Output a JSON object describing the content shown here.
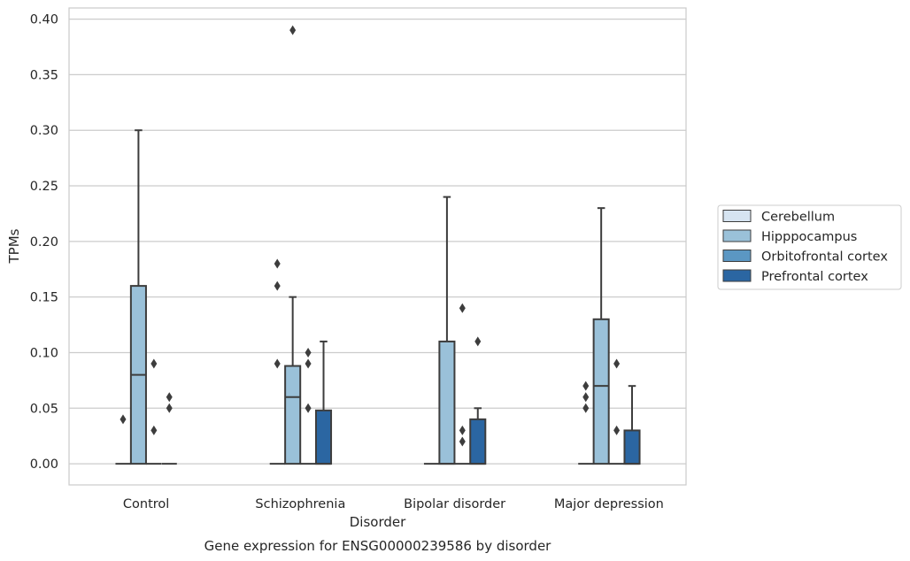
{
  "chart_data": {
    "type": "box",
    "title": "",
    "caption": "Gene expression for ENSG00000239586 by disorder",
    "xlabel": "Disorder",
    "ylabel": "TPMs",
    "ylim": [
      -0.019,
      0.41
    ],
    "yticks": [
      0.0,
      0.05,
      0.1,
      0.15,
      0.2,
      0.25,
      0.3,
      0.35,
      0.4
    ],
    "ytick_labels": [
      "0.00",
      "0.05",
      "0.10",
      "0.15",
      "0.20",
      "0.25",
      "0.30",
      "0.35",
      "0.40"
    ],
    "grid": true,
    "legend_position": "right",
    "categories": [
      "Control",
      "Schizophrenia",
      "Bipolar disorder",
      "Major depression"
    ],
    "series": [
      {
        "name": "Cerebellum",
        "color": "#d6e4f1",
        "boxes": [
          {
            "q1": 0,
            "median": 0,
            "q3": 0,
            "whisker_low": 0,
            "whisker_high": 0,
            "outliers": [
              0.04
            ]
          },
          {
            "q1": 0,
            "median": 0,
            "q3": 0,
            "whisker_low": 0,
            "whisker_high": 0,
            "outliers": [
              0.09,
              0.16,
              0.18
            ]
          },
          {
            "q1": 0,
            "median": 0,
            "q3": 0,
            "whisker_low": 0,
            "whisker_high": 0,
            "outliers": []
          },
          {
            "q1": 0,
            "median": 0,
            "q3": 0,
            "whisker_low": 0,
            "whisker_high": 0,
            "outliers": [
              0.05,
              0.06,
              0.07
            ]
          }
        ]
      },
      {
        "name": "Hipppocampus",
        "color": "#9ac1d9",
        "boxes": [
          {
            "q1": 0,
            "median": 0.08,
            "q3": 0.16,
            "whisker_low": 0,
            "whisker_high": 0.3,
            "outliers": []
          },
          {
            "q1": 0,
            "median": 0.06,
            "q3": 0.088,
            "whisker_low": 0,
            "whisker_high": 0.15,
            "outliers": [
              0.39
            ]
          },
          {
            "q1": 0,
            "median": 0,
            "q3": 0.11,
            "whisker_low": 0,
            "whisker_high": 0.24,
            "outliers": []
          },
          {
            "q1": 0,
            "median": 0.07,
            "q3": 0.13,
            "whisker_low": 0,
            "whisker_high": 0.23,
            "outliers": []
          }
        ]
      },
      {
        "name": "Orbitofrontal cortex",
        "color": "#5b97c3",
        "boxes": [
          {
            "q1": 0,
            "median": 0,
            "q3": 0,
            "whisker_low": 0,
            "whisker_high": 0,
            "outliers": [
              0.03,
              0.09
            ]
          },
          {
            "q1": 0,
            "median": 0,
            "q3": 0,
            "whisker_low": 0,
            "whisker_high": 0,
            "outliers": [
              0.05,
              0.09,
              0.1
            ]
          },
          {
            "q1": 0,
            "median": 0,
            "q3": 0,
            "whisker_low": 0,
            "whisker_high": 0,
            "outliers": [
              0.02,
              0.03,
              0.14
            ]
          },
          {
            "q1": 0,
            "median": 0,
            "q3": 0,
            "whisker_low": 0,
            "whisker_high": 0,
            "outliers": [
              0.03,
              0.09
            ]
          }
        ]
      },
      {
        "name": "Prefrontal cortex",
        "color": "#2b66a2",
        "boxes": [
          {
            "q1": 0,
            "median": 0,
            "q3": 0,
            "whisker_low": 0,
            "whisker_high": 0,
            "outliers": [
              0.05,
              0.06
            ]
          },
          {
            "q1": 0,
            "median": 0,
            "q3": 0.048,
            "whisker_low": 0,
            "whisker_high": 0.11,
            "outliers": []
          },
          {
            "q1": 0,
            "median": 0,
            "q3": 0.04,
            "whisker_low": 0,
            "whisker_high": 0.05,
            "outliers": [
              0.11
            ]
          },
          {
            "q1": 0,
            "median": 0,
            "q3": 0.03,
            "whisker_low": 0,
            "whisker_high": 0.07,
            "outliers": []
          }
        ]
      }
    ]
  }
}
